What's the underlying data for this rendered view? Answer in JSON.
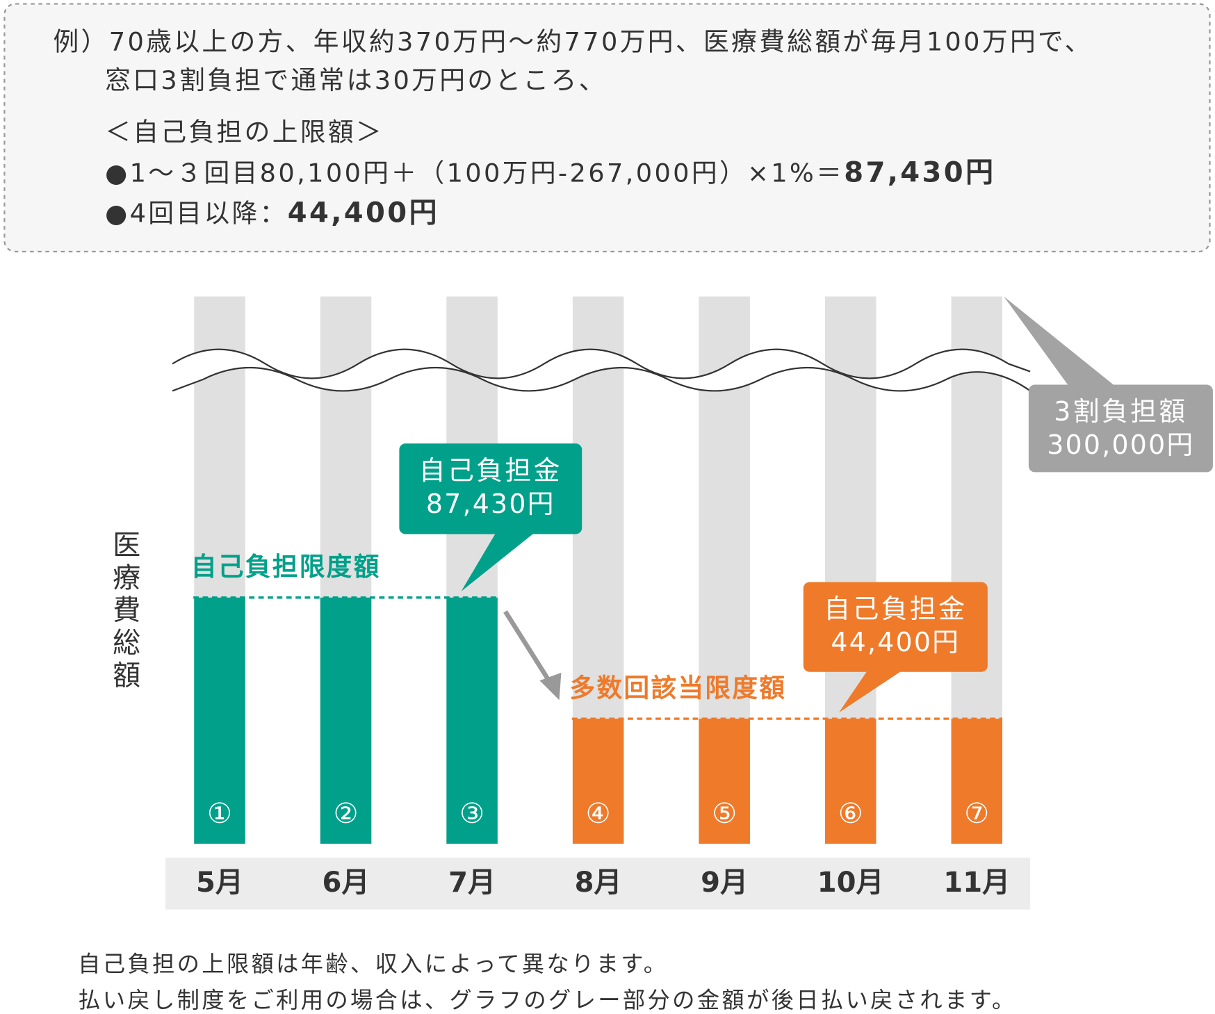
{
  "chart_data": {
    "type": "bar",
    "note": [
      [
        {
          "text": "例）70歳以上の方、年収約370万円～約770万円、医療費総額が毎月100万円で、"
        }
      ],
      [
        {
          "text": "窓口3割負担で通常は30万円のところ、"
        }
      ],
      [
        {
          "text": "＜自己負担の上限額＞"
        }
      ],
      [
        {
          "text": "●1～３回目80,100円＋（100万円-267,000円）×1%＝"
        },
        {
          "text": "87,430円",
          "bold": true
        }
      ],
      [
        {
          "text": "●4回目以降："
        },
        {
          "text": "44,400円",
          "bold": true
        }
      ]
    ],
    "y_label": "医療費総額",
    "categories": [
      "5月",
      "6月",
      "7月",
      "8月",
      "9月",
      "10月",
      "11月"
    ],
    "counts": [
      "①",
      "②",
      "③",
      "④",
      "⑤",
      "⑥",
      "⑦"
    ],
    "series": [
      {
        "color": "#e0e0e0",
        "values": [
          300000,
          300000,
          300000,
          300000,
          300000,
          300000,
          300000
        ]
      },
      {
        "color": "#00a08a",
        "values": [
          87430,
          87430,
          87430,
          null,
          null,
          null,
          null
        ]
      },
      {
        "color": "#ee7a2a",
        "values": [
          null,
          null,
          null,
          44400,
          44400,
          44400,
          44400
        ]
      }
    ],
    "limits": [
      {
        "label": "自己負担限度額",
        "value": 87430,
        "color": "#00a08a"
      },
      {
        "label": "多数回該当限度額",
        "value": 44400,
        "color": "#ee7a2a"
      }
    ],
    "callouts": [
      {
        "text": "自己負担金",
        "value": 87430,
        "value_label": "87,430円",
        "color": "#00a08a"
      },
      {
        "text": "自己負担金",
        "value": 44400,
        "value_label": "44,400円",
        "color": "#ee7a2a"
      },
      {
        "text": "3割負担額",
        "value": 300000,
        "value_label": "300,000円",
        "color": "#a3a3a3"
      }
    ],
    "footer": [
      "自己負担の上限額は年齢、収入によって異なります。",
      "払い戻し制度をご利用の場合は、グラフのグレー部分の金額が後日払い戻されます。"
    ]
  }
}
